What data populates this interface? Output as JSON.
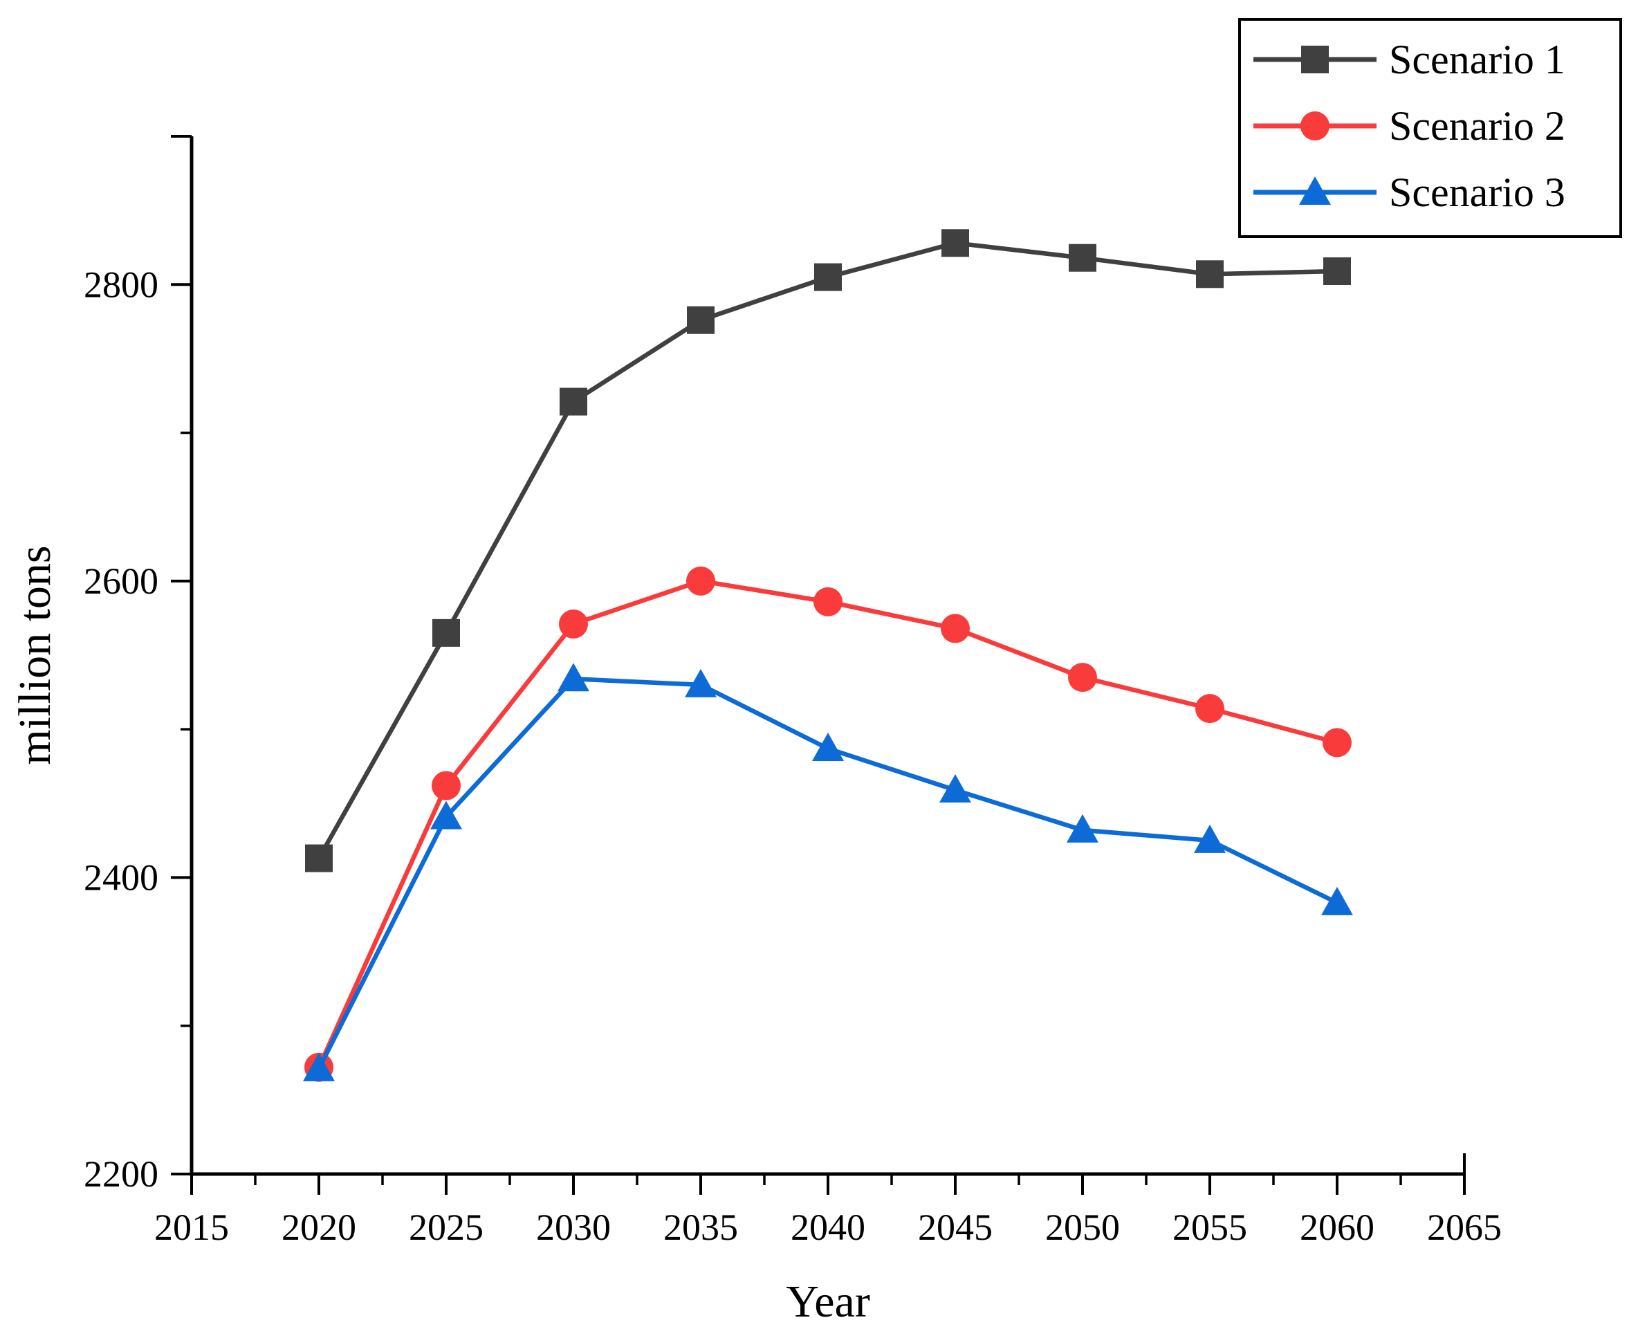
{
  "page": {
    "background": "#ffffff",
    "axis_color": "#000000",
    "legend_border_color": "#000000",
    "legend_background": "#ffffff"
  },
  "chart_data": {
    "type": "line",
    "title": "",
    "xlabel": "Year",
    "ylabel": "million tons",
    "x": [
      2020,
      2025,
      2030,
      2035,
      2040,
      2045,
      2050,
      2055,
      2060
    ],
    "series": [
      {
        "name": "Scenario 1",
        "marker": "square",
        "color": "#404040",
        "values": [
          2413,
          2565,
          2721,
          2776,
          2805,
          2828,
          2818,
          2807,
          2809
        ]
      },
      {
        "name": "Scenario 2",
        "marker": "circle",
        "color": "#F93B3B",
        "values": [
          2272,
          2462,
          2571,
          2600,
          2586,
          2568,
          2535,
          2514,
          2491
        ]
      },
      {
        "name": "Scenario 3",
        "marker": "triangle",
        "color": "#0D6BD7",
        "values": [
          2271,
          2441,
          2534,
          2530,
          2487,
          2459,
          2432,
          2425,
          2383
        ]
      }
    ],
    "xlim": [
      2015,
      2065
    ],
    "ylim": [
      2200,
      2900
    ],
    "x_major_ticks": [
      2015,
      2020,
      2025,
      2030,
      2035,
      2040,
      2045,
      2050,
      2055,
      2060,
      2065
    ],
    "x_minor_ticks": [
      2017.5,
      2022.5,
      2027.5,
      2032.5,
      2037.5,
      2042.5,
      2047.5,
      2052.5,
      2057.5,
      2062.5
    ],
    "y_major_ticks": [
      2200,
      2400,
      2600,
      2800
    ],
    "y_minor_ticks": [
      2300,
      2500,
      2700
    ],
    "grid": false,
    "legend_position": "top-right",
    "legend_labels": [
      "Scenario 1",
      "Scenario 2",
      "Scenario 3"
    ]
  }
}
